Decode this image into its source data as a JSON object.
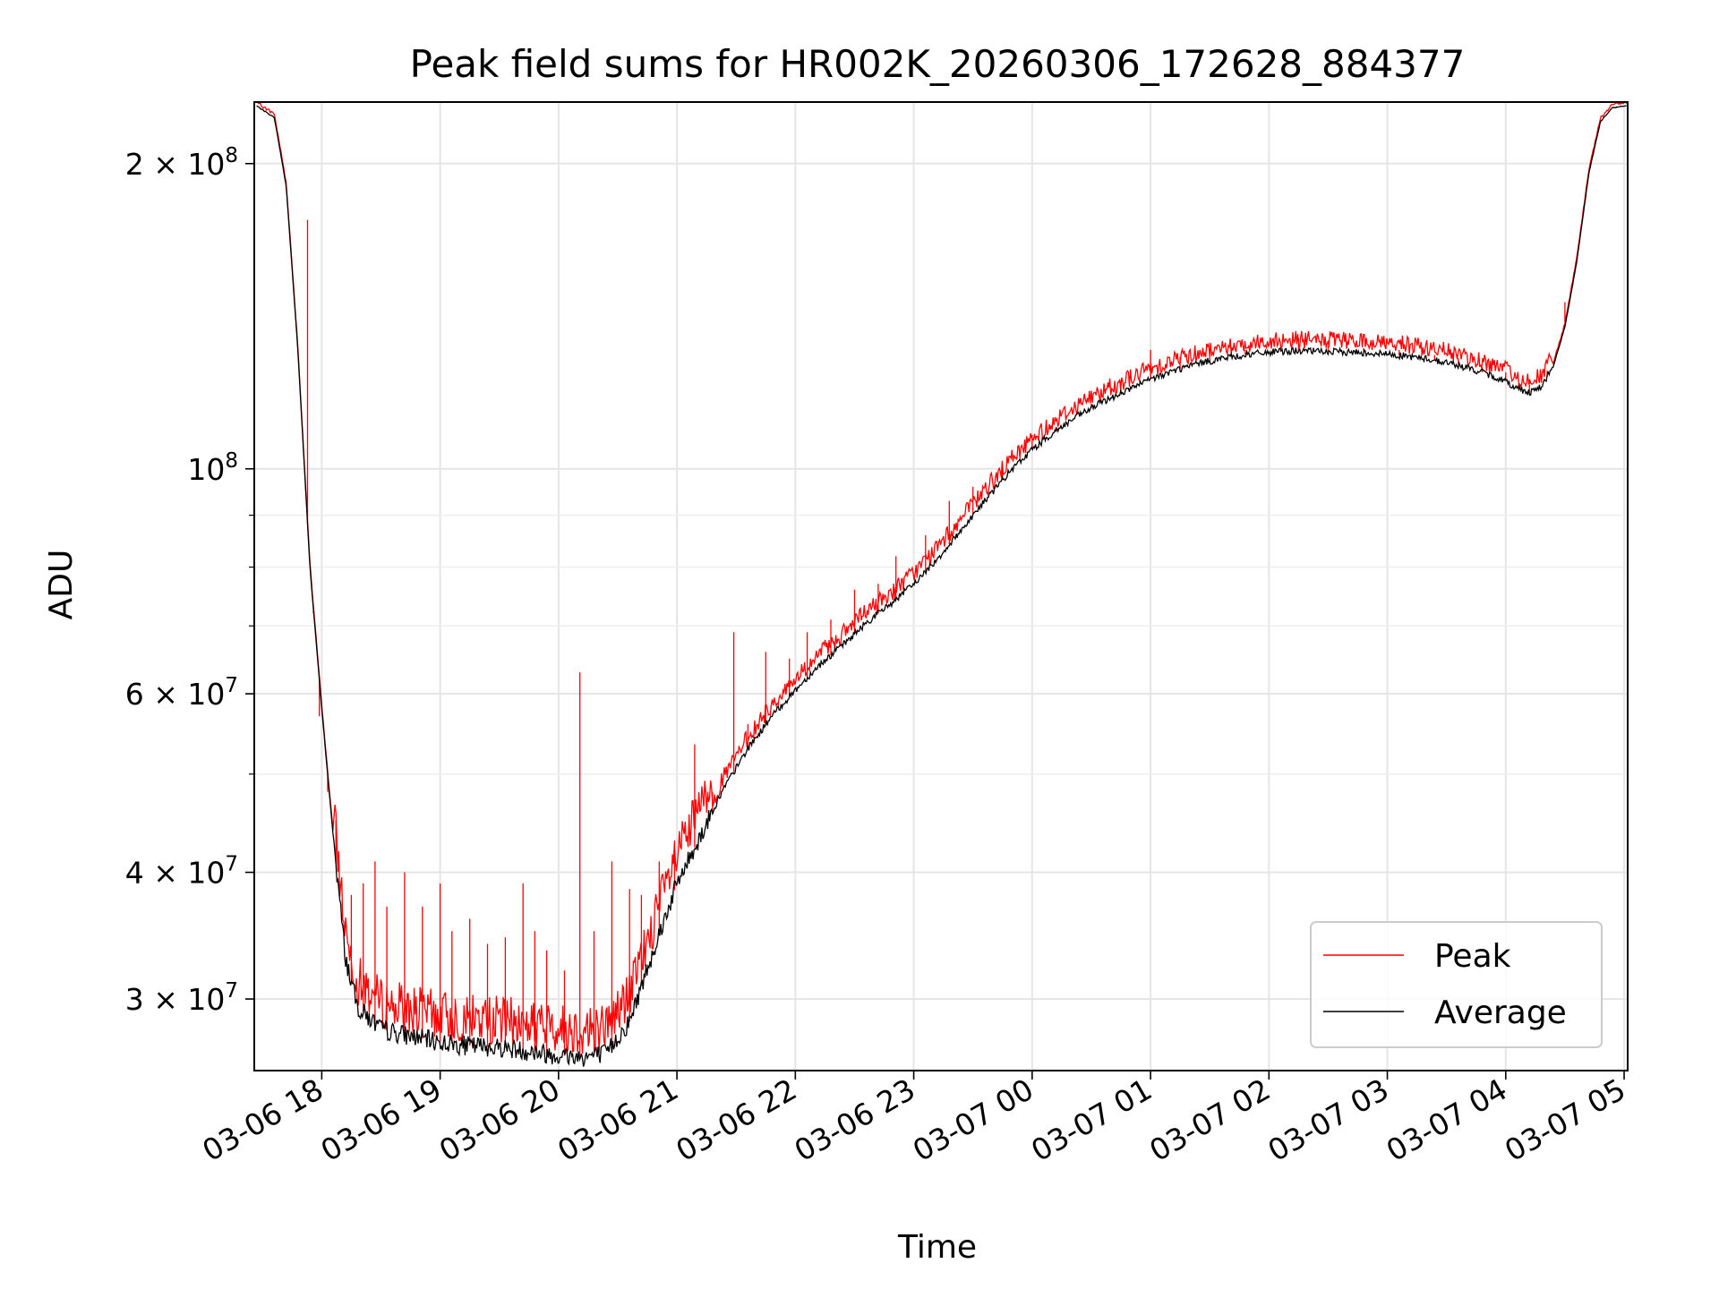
{
  "chart_data": {
    "type": "line",
    "title": "Peak field sums for HR002K_20260306_172628_884377",
    "xlabel": "Time",
    "ylabel": "ADU",
    "yscale": "log",
    "ylim": [
      25500000,
      230000000
    ],
    "xlim_hours": [
      17.43,
      29.03
    ],
    "x_ticks": [
      {
        "label": "03-06 18",
        "hour": 18
      },
      {
        "label": "03-06 19",
        "hour": 19
      },
      {
        "label": "03-06 20",
        "hour": 20
      },
      {
        "label": "03-06 21",
        "hour": 21
      },
      {
        "label": "03-06 22",
        "hour": 22
      },
      {
        "label": "03-06 23",
        "hour": 23
      },
      {
        "label": "03-07 00",
        "hour": 24
      },
      {
        "label": "03-07 01",
        "hour": 25
      },
      {
        "label": "03-07 02",
        "hour": 26
      },
      {
        "label": "03-07 03",
        "hour": 27
      },
      {
        "label": "03-07 04",
        "hour": 28
      },
      {
        "label": "03-07 05",
        "hour": 29
      }
    ],
    "y_ticks": [
      {
        "mantissa": "3 × 10",
        "exp": "7",
        "value": 30000000
      },
      {
        "mantissa": "4 × 10",
        "exp": "7",
        "value": 40000000
      },
      {
        "mantissa": "6 × 10",
        "exp": "7",
        "value": 60000000
      },
      {
        "mantissa": "10",
        "exp": "8",
        "value": 100000000
      },
      {
        "mantissa": "2 × 10",
        "exp": "8",
        "value": 200000000
      }
    ],
    "y_minor_ticks": [
      50000000,
      70000000,
      80000000,
      90000000
    ],
    "series": [
      {
        "name": "Average",
        "color": "#000000",
        "points": [
          [
            17.45,
            228000000
          ],
          [
            17.6,
            222000000
          ],
          [
            17.7,
            190000000
          ],
          [
            17.8,
            130000000
          ],
          [
            17.9,
            80000000
          ],
          [
            18.0,
            58000000
          ],
          [
            18.1,
            43000000
          ],
          [
            18.2,
            33000000
          ],
          [
            18.3,
            29500000
          ],
          [
            18.5,
            28000000
          ],
          [
            18.8,
            27500000
          ],
          [
            19.0,
            27200000
          ],
          [
            19.2,
            27000000
          ],
          [
            19.5,
            26900000
          ],
          [
            19.8,
            26600000
          ],
          [
            20.0,
            26400000
          ],
          [
            20.2,
            26300000
          ],
          [
            20.4,
            26500000
          ],
          [
            20.6,
            28500000
          ],
          [
            20.8,
            33500000
          ],
          [
            21.0,
            39000000
          ],
          [
            21.2,
            43500000
          ],
          [
            21.4,
            48500000
          ],
          [
            21.6,
            53000000
          ],
          [
            21.8,
            57000000
          ],
          [
            22.0,
            60500000
          ],
          [
            22.2,
            64000000
          ],
          [
            22.4,
            67000000
          ],
          [
            22.6,
            70500000
          ],
          [
            22.8,
            73500000
          ],
          [
            23.0,
            77000000
          ],
          [
            23.2,
            81500000
          ],
          [
            23.4,
            87000000
          ],
          [
            23.6,
            93000000
          ],
          [
            23.8,
            99000000
          ],
          [
            24.0,
            104500000
          ],
          [
            24.2,
            109000000
          ],
          [
            24.4,
            113000000
          ],
          [
            24.6,
            116500000
          ],
          [
            24.8,
            119500000
          ],
          [
            25.0,
            122500000
          ],
          [
            25.2,
            125000000
          ],
          [
            25.4,
            127000000
          ],
          [
            25.6,
            128500000
          ],
          [
            25.8,
            129500000
          ],
          [
            26.0,
            130300000
          ],
          [
            26.2,
            130700000
          ],
          [
            26.4,
            130600000
          ],
          [
            26.6,
            130400000
          ],
          [
            26.8,
            130200000
          ],
          [
            27.0,
            129800000
          ],
          [
            27.2,
            129000000
          ],
          [
            27.4,
            128000000
          ],
          [
            27.6,
            126500000
          ],
          [
            27.8,
            124500000
          ],
          [
            28.0,
            122000000
          ],
          [
            28.1,
            120000000
          ],
          [
            28.2,
            119000000
          ],
          [
            28.3,
            120500000
          ],
          [
            28.4,
            126000000
          ],
          [
            28.5,
            138000000
          ],
          [
            28.6,
            160000000
          ],
          [
            28.7,
            195000000
          ],
          [
            28.8,
            220000000
          ],
          [
            28.9,
            227000000
          ],
          [
            29.02,
            228000000
          ]
        ]
      },
      {
        "name": "Peak",
        "color": "#ff0000",
        "spikes": [
          [
            17.88,
            176000000
          ],
          [
            17.93,
            72000000
          ],
          [
            17.98,
            57000000
          ],
          [
            18.05,
            48000000
          ],
          [
            18.12,
            45000000
          ],
          [
            18.25,
            38000000
          ],
          [
            18.35,
            39000000
          ],
          [
            18.45,
            41000000
          ],
          [
            18.55,
            37000000
          ],
          [
            18.7,
            40000000
          ],
          [
            18.85,
            37000000
          ],
          [
            19.0,
            39000000
          ],
          [
            19.1,
            35000000
          ],
          [
            19.25,
            36000000
          ],
          [
            19.4,
            34000000
          ],
          [
            19.55,
            34500000
          ],
          [
            19.7,
            39000000
          ],
          [
            19.8,
            35000000
          ],
          [
            19.9,
            33500000
          ],
          [
            20.05,
            32000000
          ],
          [
            20.18,
            63000000
          ],
          [
            20.3,
            35000000
          ],
          [
            20.45,
            41000000
          ],
          [
            20.6,
            38500000
          ],
          [
            20.7,
            38000000
          ],
          [
            20.85,
            41000000
          ],
          [
            20.98,
            43000000
          ],
          [
            21.15,
            53500000
          ],
          [
            21.3,
            48000000
          ],
          [
            21.48,
            69000000
          ],
          [
            21.6,
            56000000
          ],
          [
            21.75,
            66000000
          ],
          [
            21.95,
            65000000
          ],
          [
            22.1,
            69000000
          ],
          [
            22.3,
            71000000
          ],
          [
            22.5,
            76000000
          ],
          [
            22.7,
            77000000
          ],
          [
            22.85,
            82000000
          ],
          [
            23.1,
            86000000
          ],
          [
            23.3,
            93000000
          ],
          [
            23.5,
            96000000
          ],
          [
            23.75,
            101000000
          ],
          [
            24.0,
            108000000
          ],
          [
            24.2,
            110000000
          ],
          [
            24.5,
            116000000
          ],
          [
            24.75,
            122000000
          ],
          [
            25.0,
            131000000
          ],
          [
            25.25,
            129000000
          ],
          [
            25.5,
            130000000
          ],
          [
            25.8,
            131000000
          ],
          [
            26.1,
            131500000
          ],
          [
            26.25,
            134500000
          ],
          [
            26.5,
            132000000
          ],
          [
            26.8,
            131500000
          ],
          [
            27.1,
            131000000
          ],
          [
            27.4,
            129500000
          ],
          [
            27.6,
            128500000
          ],
          [
            27.8,
            126000000
          ],
          [
            28.0,
            124500000
          ],
          [
            28.2,
            122000000
          ],
          [
            28.35,
            125000000
          ],
          [
            28.5,
            146000000
          ]
        ]
      }
    ],
    "legend": {
      "position": "bottom-right",
      "entries": [
        {
          "label": "Peak",
          "color": "#ff0000"
        },
        {
          "label": "Average",
          "color": "#000000"
        }
      ]
    }
  }
}
